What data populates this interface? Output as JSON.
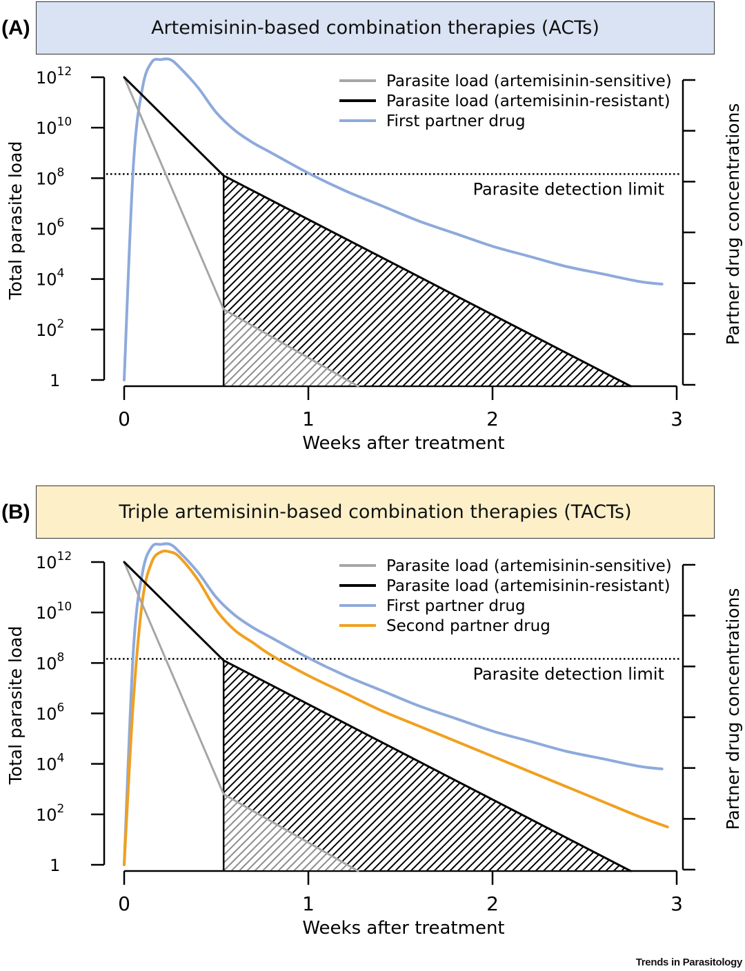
{
  "colors": {
    "sensitive": "#a6a6a6",
    "resistant": "#000000",
    "first_partner": "#8eaadb",
    "second_partner": "#f0a020",
    "banner_a": "#dae3f3",
    "banner_b": "#fdf0c9"
  },
  "panels": [
    {
      "letter": "(A)",
      "banner": "Artemisinin-based combination therapies (ACTs)",
      "detection_label": "Parasite detection limit",
      "legend": [
        {
          "label": "Parasite load (artemisinin-sensitive)",
          "color": "#a6a6a6"
        },
        {
          "label": "Parasite load (artemisinin-resistant)",
          "color": "#000000"
        },
        {
          "label": "First partner drug",
          "color": "#8eaadb"
        }
      ]
    },
    {
      "letter": "(B)",
      "banner": "Triple artemisinin-based combination therapies (TACTs)",
      "detection_label": "Parasite detection limit",
      "legend": [
        {
          "label": "Parasite load (artemisinin-sensitive)",
          "color": "#a6a6a6"
        },
        {
          "label": "Parasite load (artemisinin-resistant)",
          "color": "#000000"
        },
        {
          "label": "First partner drug",
          "color": "#8eaadb"
        },
        {
          "label": "Second partner drug",
          "color": "#f0a020"
        }
      ]
    }
  ],
  "chart_data": [
    {
      "type": "line",
      "title": "Artemisinin-based combination therapies (ACTs)",
      "xlabel": "Weeks after treatment",
      "ylabel": "Total parasite load",
      "y2label": "Partner drug concentrations",
      "xlim": [
        0,
        3
      ],
      "ylim_log10": [
        0,
        12
      ],
      "x_ticks": [
        0,
        1,
        2,
        3
      ],
      "x_tick_labels": [
        "0",
        "1",
        "2",
        "3"
      ],
      "y_ticks_log10": [
        0,
        2,
        4,
        6,
        8,
        10,
        12
      ],
      "y_tick_bases": [
        "1",
        "10",
        "10",
        "10",
        "10",
        "10",
        "10"
      ],
      "y_tick_exps": [
        "",
        "2",
        "4",
        "6",
        "8",
        "10",
        "12"
      ],
      "detection_limit_log10": 8,
      "grid": false,
      "legend_position": "top-right",
      "series": [
        {
          "name": "Parasite load (artemisinin-sensitive)",
          "x": [
            0,
            0.54,
            1.27
          ],
          "log10_y": [
            12,
            2.8,
            0
          ]
        },
        {
          "name": "Parasite load (artemisinin-resistant)",
          "x": [
            0,
            0.54,
            2.75
          ],
          "log10_y": [
            12,
            8.1,
            0
          ]
        },
        {
          "name": "First partner drug",
          "x": [
            0,
            0.05,
            0.1,
            0.15,
            0.2,
            0.25,
            0.3,
            0.4,
            0.5,
            0.6,
            0.7,
            0.8,
            1.0,
            1.2,
            1.4,
            1.6,
            1.8,
            2.0,
            2.2,
            2.4,
            2.6,
            2.8,
            2.92
          ],
          "log10_y": [
            0,
            8.5,
            11.6,
            12.6,
            12.7,
            12.7,
            12.4,
            11.6,
            10.6,
            9.9,
            9.4,
            9.0,
            8.2,
            7.5,
            6.9,
            6.3,
            5.8,
            5.3,
            4.9,
            4.5,
            4.2,
            3.9,
            3.8
          ]
        }
      ]
    },
    {
      "type": "line",
      "title": "Triple artemisinin-based combination therapies (TACTs)",
      "xlabel": "Weeks after treatment",
      "ylabel": "Total parasite load",
      "y2label": "Partner drug concentrations",
      "xlim": [
        0,
        3
      ],
      "ylim_log10": [
        0,
        12
      ],
      "x_ticks": [
        0,
        1,
        2,
        3
      ],
      "x_tick_labels": [
        "0",
        "1",
        "2",
        "3"
      ],
      "y_ticks_log10": [
        0,
        2,
        4,
        6,
        8,
        10,
        12
      ],
      "y_tick_bases": [
        "1",
        "10",
        "10",
        "10",
        "10",
        "10",
        "10"
      ],
      "y_tick_exps": [
        "",
        "2",
        "4",
        "6",
        "8",
        "10",
        "12"
      ],
      "detection_limit_log10": 8,
      "grid": false,
      "legend_position": "top-right",
      "series": [
        {
          "name": "Parasite load (artemisinin-sensitive)",
          "x": [
            0,
            0.54,
            1.27
          ],
          "log10_y": [
            12,
            2.8,
            0
          ]
        },
        {
          "name": "Parasite load (artemisinin-resistant)",
          "x": [
            0,
            0.54,
            2.75
          ],
          "log10_y": [
            12,
            8.1,
            0
          ]
        },
        {
          "name": "First partner drug",
          "x": [
            0,
            0.05,
            0.1,
            0.15,
            0.2,
            0.25,
            0.3,
            0.4,
            0.5,
            0.6,
            0.7,
            0.8,
            1.0,
            1.2,
            1.4,
            1.6,
            1.8,
            2.0,
            2.2,
            2.4,
            2.6,
            2.8,
            2.92
          ],
          "log10_y": [
            0,
            8.5,
            11.6,
            12.6,
            12.7,
            12.7,
            12.4,
            11.6,
            10.6,
            9.9,
            9.4,
            9.0,
            8.2,
            7.5,
            6.9,
            6.3,
            5.8,
            5.3,
            4.9,
            4.5,
            4.2,
            3.9,
            3.8
          ]
        },
        {
          "name": "Second partner drug",
          "x": [
            0,
            0.05,
            0.1,
            0.15,
            0.2,
            0.25,
            0.3,
            0.4,
            0.5,
            0.6,
            0.7,
            0.8,
            1.0,
            1.2,
            1.4,
            1.6,
            1.8,
            2.0,
            2.2,
            2.4,
            2.6,
            2.8,
            2.95
          ],
          "log10_y": [
            0,
            6.5,
            10.5,
            12.0,
            12.4,
            12.4,
            12.2,
            11.3,
            10.1,
            9.3,
            8.8,
            8.3,
            7.5,
            6.8,
            6.1,
            5.5,
            4.9,
            4.3,
            3.7,
            3.1,
            2.5,
            1.9,
            1.5
          ]
        }
      ]
    }
  ],
  "footer": "Trends in Parasitology"
}
